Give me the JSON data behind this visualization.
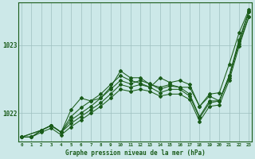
{
  "title": "Graphe pression niveau de la mer (hPa)",
  "bg_color": "#cce8e8",
  "grid_color": "#9dbfbf",
  "line_color": "#1a5c1a",
  "xlim": [
    -0.3,
    23.3
  ],
  "ylim": [
    1021.58,
    1023.62
  ],
  "xticks": [
    0,
    1,
    2,
    3,
    4,
    5,
    6,
    7,
    8,
    9,
    10,
    11,
    12,
    13,
    14,
    15,
    16,
    17,
    18,
    19,
    20,
    21,
    22,
    23
  ],
  "yticks": [
    1022,
    1023
  ],
  "series": [
    {
      "x": [
        0,
        1,
        2,
        3,
        4,
        5,
        6,
        7,
        8,
        9,
        10,
        11,
        12,
        13,
        14,
        15,
        16,
        17,
        18,
        19,
        20,
        21,
        22,
        23
      ],
      "y": [
        1021.65,
        1021.65,
        1021.75,
        1021.82,
        1021.72,
        1021.85,
        1021.95,
        1022.05,
        1022.15,
        1022.28,
        1022.42,
        1022.38,
        1022.42,
        1022.38,
        1022.3,
        1022.35,
        1022.35,
        1022.25,
        1021.93,
        1022.15,
        1022.18,
        1022.52,
        1023.05,
        1023.48
      ]
    },
    {
      "x": [
        0,
        1,
        2,
        3,
        4,
        5,
        6,
        7,
        8,
        9,
        10,
        11,
        12,
        13,
        14,
        15,
        16,
        17,
        18,
        19,
        20,
        21,
        22,
        23
      ],
      "y": [
        1021.65,
        1021.65,
        1021.75,
        1021.82,
        1021.72,
        1021.9,
        1022.0,
        1022.1,
        1022.22,
        1022.35,
        1022.48,
        1022.43,
        1022.48,
        1022.43,
        1022.35,
        1022.4,
        1022.38,
        1022.28,
        1021.95,
        1022.18,
        1022.18,
        1022.55,
        1023.08,
        1023.5
      ]
    },
    {
      "x": [
        0,
        2,
        3,
        4,
        5,
        6,
        7,
        8,
        9,
        10,
        11,
        12,
        13,
        14,
        15,
        16,
        17,
        18,
        19,
        20,
        21,
        22,
        23
      ],
      "y": [
        1021.65,
        1021.75,
        1021.82,
        1021.72,
        1022.05,
        1022.22,
        1022.18,
        1022.22,
        1022.38,
        1022.62,
        1022.52,
        1022.52,
        1022.42,
        1022.38,
        1022.42,
        1022.38,
        1022.38,
        1022.1,
        1022.28,
        1022.3,
        1022.72,
        1023.18,
        1023.52
      ]
    },
    {
      "x": [
        0,
        2,
        3,
        4,
        5,
        6,
        7,
        8,
        9,
        10,
        11,
        12,
        13,
        14,
        15,
        16,
        17,
        18,
        19,
        20,
        21,
        22,
        23
      ],
      "y": [
        1021.65,
        1021.75,
        1021.82,
        1021.72,
        1021.95,
        1022.08,
        1022.18,
        1022.28,
        1022.42,
        1022.55,
        1022.48,
        1022.44,
        1022.38,
        1022.52,
        1022.45,
        1022.48,
        1022.42,
        1022.1,
        1022.25,
        1022.18,
        1022.55,
        1023.02,
        1023.42
      ]
    },
    {
      "x": [
        0,
        1,
        2,
        3,
        4,
        5,
        6,
        7,
        8,
        9,
        10,
        11,
        12,
        13,
        14,
        15,
        16,
        17,
        18,
        19,
        20,
        21,
        22,
        23
      ],
      "y": [
        1021.65,
        1021.65,
        1021.72,
        1021.78,
        1021.68,
        1021.8,
        1021.9,
        1022.0,
        1022.1,
        1022.22,
        1022.35,
        1022.32,
        1022.35,
        1022.32,
        1022.25,
        1022.28,
        1022.28,
        1022.2,
        1021.88,
        1022.1,
        1022.12,
        1022.48,
        1022.98,
        1023.42
      ]
    }
  ]
}
